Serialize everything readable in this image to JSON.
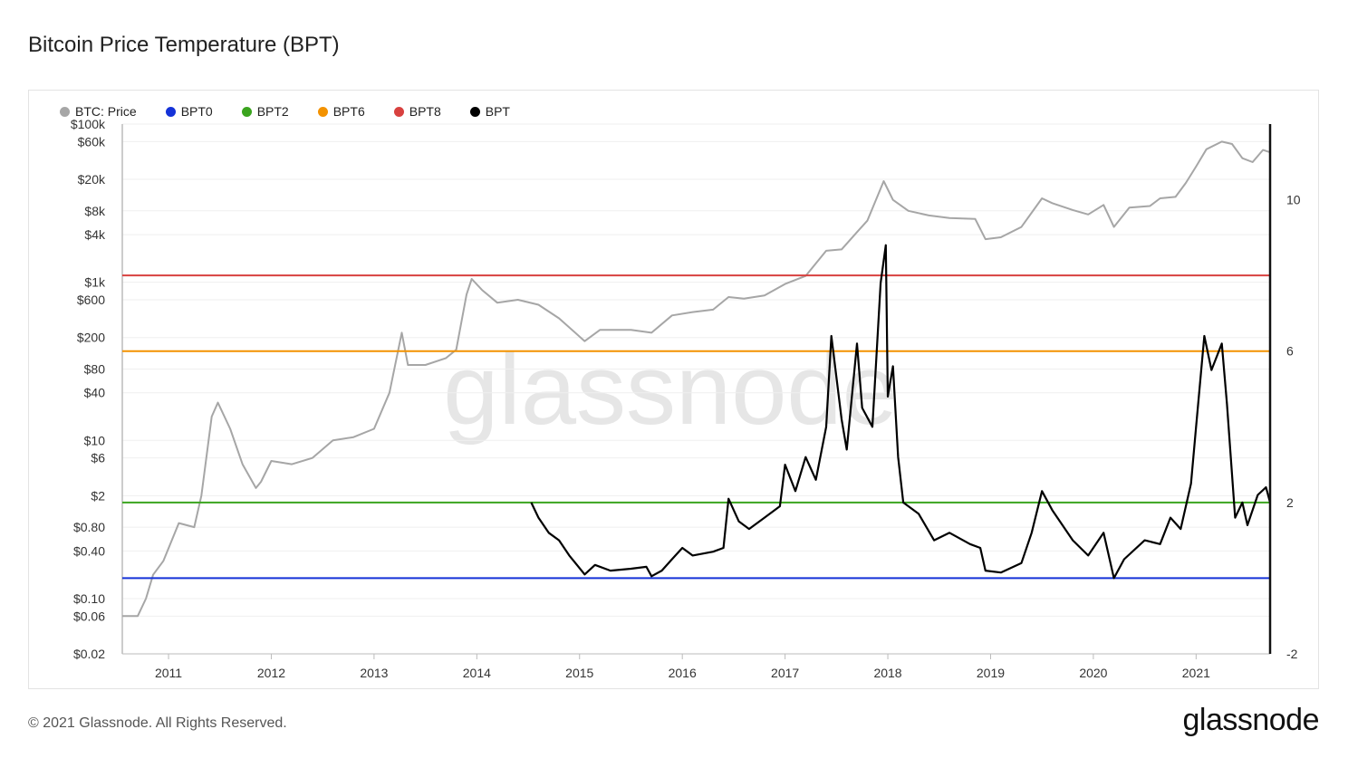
{
  "title": "Bitcoin Price Temperature (BPT)",
  "footer": "© 2021 Glassnode. All Rights Reserved.",
  "brand": "glassnode",
  "watermark": "glassnode",
  "colors": {
    "price": "#a6a6a6",
    "bpt0": "#1432d8",
    "bpt2": "#3aa41e",
    "bpt6": "#f39200",
    "bpt8": "#d8413f",
    "bpt": "#000000",
    "grid": "#efefef"
  },
  "legend": [
    {
      "label": "BTC: Price",
      "color": "#a6a6a6"
    },
    {
      "label": "BPT0",
      "color": "#1432d8"
    },
    {
      "label": "BPT2",
      "color": "#3aa41e"
    },
    {
      "label": "BPT6",
      "color": "#f39200"
    },
    {
      "label": "BPT8",
      "color": "#d8413f"
    },
    {
      "label": "BPT",
      "color": "#000000"
    }
  ],
  "chart_data": {
    "type": "line",
    "title": "Bitcoin Price Temperature (BPT)",
    "x_ticks": [
      "2011",
      "2012",
      "2013",
      "2014",
      "2015",
      "2016",
      "2017",
      "2018",
      "2019",
      "2020",
      "2021"
    ],
    "x_range": [
      2010.55,
      2021.72
    ],
    "y_left": {
      "scale": "log",
      "range": [
        0.02,
        100000
      ],
      "tick_labels": [
        "$100k",
        "$60k",
        "$20k",
        "$8k",
        "$4k",
        "$1k",
        "$600",
        "$200",
        "$80",
        "$40",
        "$10",
        "$6",
        "$2",
        "$0.80",
        "$0.40",
        "$0.10",
        "$0.06",
        "$0.02"
      ],
      "tick_values": [
        100000,
        60000,
        20000,
        8000,
        4000,
        1000,
        600,
        200,
        80,
        40,
        10,
        6,
        2,
        0.8,
        0.4,
        0.1,
        0.06,
        0.02
      ]
    },
    "y_right": {
      "scale": "linear",
      "range": [
        -2,
        12
      ],
      "tick_labels": [
        "10",
        "6",
        "2",
        "-2"
      ],
      "tick_values": [
        10,
        6,
        2,
        -2
      ]
    },
    "grid": true,
    "legend_position": "top-left",
    "series": [
      {
        "name": "BTC: Price",
        "axis": "left",
        "color": "#a6a6a6",
        "points": [
          [
            2010.55,
            0.06
          ],
          [
            2010.7,
            0.06
          ],
          [
            2010.78,
            0.1
          ],
          [
            2010.85,
            0.2
          ],
          [
            2010.95,
            0.3
          ],
          [
            2011.1,
            0.9
          ],
          [
            2011.25,
            0.8
          ],
          [
            2011.32,
            2
          ],
          [
            2011.42,
            20
          ],
          [
            2011.48,
            30
          ],
          [
            2011.6,
            14
          ],
          [
            2011.72,
            5
          ],
          [
            2011.85,
            2.5
          ],
          [
            2011.9,
            3
          ],
          [
            2012.0,
            5.5
          ],
          [
            2012.2,
            5
          ],
          [
            2012.4,
            6
          ],
          [
            2012.6,
            10
          ],
          [
            2012.8,
            11
          ],
          [
            2013.0,
            14
          ],
          [
            2013.15,
            40
          ],
          [
            2013.27,
            230
          ],
          [
            2013.33,
            90
          ],
          [
            2013.5,
            90
          ],
          [
            2013.7,
            110
          ],
          [
            2013.8,
            140
          ],
          [
            2013.9,
            700
          ],
          [
            2013.95,
            1100
          ],
          [
            2014.05,
            800
          ],
          [
            2014.2,
            550
          ],
          [
            2014.4,
            600
          ],
          [
            2014.6,
            520
          ],
          [
            2014.8,
            350
          ],
          [
            2015.05,
            180
          ],
          [
            2015.2,
            250
          ],
          [
            2015.5,
            250
          ],
          [
            2015.7,
            230
          ],
          [
            2015.9,
            380
          ],
          [
            2016.1,
            420
          ],
          [
            2016.3,
            450
          ],
          [
            2016.45,
            650
          ],
          [
            2016.6,
            620
          ],
          [
            2016.8,
            680
          ],
          [
            2017.0,
            950
          ],
          [
            2017.2,
            1200
          ],
          [
            2017.4,
            2500
          ],
          [
            2017.55,
            2600
          ],
          [
            2017.7,
            4300
          ],
          [
            2017.8,
            6000
          ],
          [
            2017.96,
            19000
          ],
          [
            2018.05,
            11000
          ],
          [
            2018.2,
            8000
          ],
          [
            2018.4,
            7000
          ],
          [
            2018.6,
            6500
          ],
          [
            2018.85,
            6300
          ],
          [
            2018.95,
            3500
          ],
          [
            2019.1,
            3700
          ],
          [
            2019.3,
            5000
          ],
          [
            2019.5,
            11500
          ],
          [
            2019.6,
            10000
          ],
          [
            2019.8,
            8200
          ],
          [
            2019.95,
            7200
          ],
          [
            2020.1,
            9500
          ],
          [
            2020.2,
            5000
          ],
          [
            2020.35,
            8800
          ],
          [
            2020.55,
            9200
          ],
          [
            2020.65,
            11500
          ],
          [
            2020.8,
            12000
          ],
          [
            2020.9,
            18000
          ],
          [
            2021.0,
            29000
          ],
          [
            2021.1,
            48000
          ],
          [
            2021.25,
            60000
          ],
          [
            2021.35,
            56000
          ],
          [
            2021.45,
            37000
          ],
          [
            2021.55,
            33000
          ],
          [
            2021.65,
            47000
          ],
          [
            2021.72,
            44000
          ]
        ]
      },
      {
        "name": "BPT0",
        "axis": "right",
        "color": "#1432d8",
        "constant": 0
      },
      {
        "name": "BPT2",
        "axis": "right",
        "color": "#3aa41e",
        "constant": 2
      },
      {
        "name": "BPT6",
        "axis": "right",
        "color": "#f39200",
        "constant": 6
      },
      {
        "name": "BPT8",
        "axis": "right",
        "color": "#d8413f",
        "constant": 8
      },
      {
        "name": "BPT",
        "axis": "right",
        "color": "#000000",
        "points": [
          [
            2014.53,
            2.0
          ],
          [
            2014.6,
            1.6
          ],
          [
            2014.7,
            1.2
          ],
          [
            2014.8,
            1.0
          ],
          [
            2014.9,
            0.6
          ],
          [
            2015.05,
            0.1
          ],
          [
            2015.15,
            0.35
          ],
          [
            2015.3,
            0.2
          ],
          [
            2015.5,
            0.25
          ],
          [
            2015.65,
            0.3
          ],
          [
            2015.7,
            0.05
          ],
          [
            2015.8,
            0.2
          ],
          [
            2015.9,
            0.5
          ],
          [
            2016.0,
            0.8
          ],
          [
            2016.1,
            0.6
          ],
          [
            2016.3,
            0.7
          ],
          [
            2016.4,
            0.8
          ],
          [
            2016.45,
            2.1
          ],
          [
            2016.55,
            1.5
          ],
          [
            2016.65,
            1.3
          ],
          [
            2016.8,
            1.6
          ],
          [
            2016.95,
            1.9
          ],
          [
            2017.0,
            3.0
          ],
          [
            2017.1,
            2.3
          ],
          [
            2017.2,
            3.2
          ],
          [
            2017.3,
            2.6
          ],
          [
            2017.4,
            4.0
          ],
          [
            2017.45,
            6.4
          ],
          [
            2017.55,
            4.2
          ],
          [
            2017.6,
            3.4
          ],
          [
            2017.7,
            6.2
          ],
          [
            2017.75,
            4.5
          ],
          [
            2017.85,
            4.0
          ],
          [
            2017.93,
            7.8
          ],
          [
            2017.98,
            8.8
          ],
          [
            2018.0,
            4.8
          ],
          [
            2018.05,
            5.6
          ],
          [
            2018.1,
            3.2
          ],
          [
            2018.15,
            2.0
          ],
          [
            2018.3,
            1.7
          ],
          [
            2018.45,
            1.0
          ],
          [
            2018.6,
            1.2
          ],
          [
            2018.8,
            0.9
          ],
          [
            2018.9,
            0.8
          ],
          [
            2018.95,
            0.2
          ],
          [
            2019.1,
            0.15
          ],
          [
            2019.3,
            0.4
          ],
          [
            2019.4,
            1.2
          ],
          [
            2019.5,
            2.3
          ],
          [
            2019.6,
            1.8
          ],
          [
            2019.8,
            1.0
          ],
          [
            2019.95,
            0.6
          ],
          [
            2020.1,
            1.2
          ],
          [
            2020.2,
            0.0
          ],
          [
            2020.3,
            0.5
          ],
          [
            2020.5,
            1.0
          ],
          [
            2020.65,
            0.9
          ],
          [
            2020.75,
            1.6
          ],
          [
            2020.85,
            1.3
          ],
          [
            2020.95,
            2.5
          ],
          [
            2021.0,
            4.0
          ],
          [
            2021.08,
            6.4
          ],
          [
            2021.15,
            5.5
          ],
          [
            2021.25,
            6.2
          ],
          [
            2021.3,
            4.6
          ],
          [
            2021.38,
            1.6
          ],
          [
            2021.45,
            2.0
          ],
          [
            2021.5,
            1.4
          ],
          [
            2021.6,
            2.2
          ],
          [
            2021.68,
            2.4
          ],
          [
            2021.72,
            2.0
          ]
        ]
      }
    ]
  }
}
